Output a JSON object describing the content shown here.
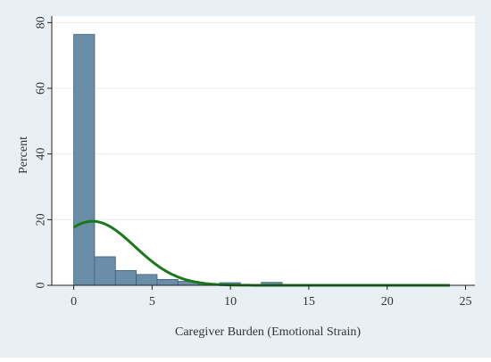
{
  "chart_data": {
    "type": "bar",
    "title": "",
    "xlabel": "Caregiver Burden (Emotional Strain)",
    "ylabel": "Percent",
    "xlim": [
      -1.4,
      25.6
    ],
    "ylim": [
      0,
      82
    ],
    "xticks": [
      0,
      5,
      10,
      15,
      20,
      25
    ],
    "yticks": [
      0,
      20,
      40,
      60,
      80
    ],
    "bin_width": 1.33,
    "bins": [
      {
        "x0": 0.0,
        "value": 76.4
      },
      {
        "x0": 1.33,
        "value": 8.7
      },
      {
        "x0": 2.66,
        "value": 4.5
      },
      {
        "x0": 3.99,
        "value": 3.3
      },
      {
        "x0": 5.32,
        "value": 1.8
      },
      {
        "x0": 6.65,
        "value": 1.2
      },
      {
        "x0": 7.98,
        "value": 0.4
      },
      {
        "x0": 9.31,
        "value": 0.8
      },
      {
        "x0": 10.64,
        "value": 0.3
      },
      {
        "x0": 11.97,
        "value": 0.9
      },
      {
        "x0": 13.3,
        "value": 0.15
      }
    ],
    "curve": {
      "type": "normal_density_percent",
      "mean": 1.2,
      "sd": 2.7,
      "scale_peak": 19.5,
      "x_start": 0,
      "x_end": 24
    },
    "grid": true,
    "legend": "none",
    "colors": {
      "frame_bg": "#e8f0f5",
      "plot_bg": "#ffffff",
      "bar_fill": "#6a8ea8",
      "bar_stroke": "#3b5f78",
      "curve": "#1a7a1a",
      "grid": "#e4ecf1",
      "axis": "#222222",
      "text": "#333333"
    }
  }
}
